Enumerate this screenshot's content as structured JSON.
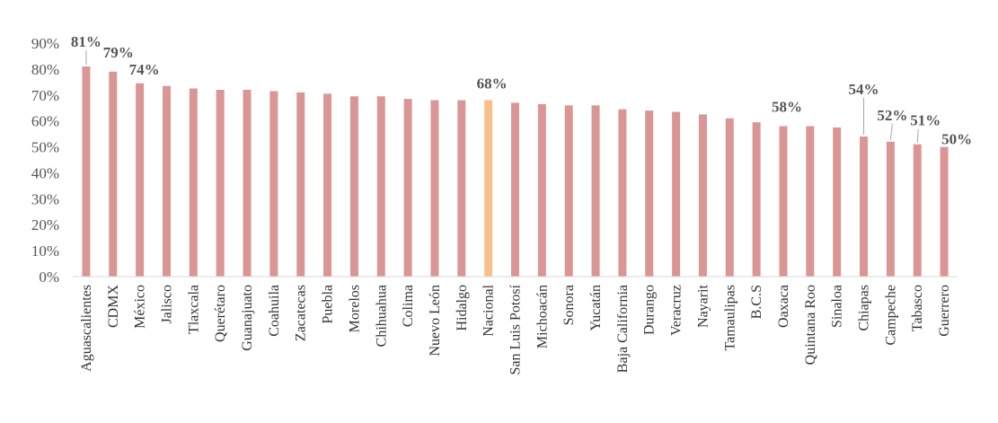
{
  "chart_data": {
    "type": "bar",
    "categories": [
      "Aguascalientes",
      "CDMX",
      "México",
      "Jalisco",
      "Tlaxcala",
      "Querétaro",
      "Guanajuato",
      "Coahuila",
      "Zacatecas",
      "Puebla",
      "Morelos",
      "Chihuahua",
      "Colima",
      "Nuevo León",
      "Hidalgo",
      "Nacional",
      "San Luis Potosí",
      "Michoacán",
      "Sonora",
      "Yucatán",
      "Baja California",
      "Durango",
      "Veracruz",
      "Nayarit",
      "Tamaulipas",
      "B.C.S",
      "Oaxaca",
      "Quintana Roo",
      "Sinaloa",
      "Chiapas",
      "Campeche",
      "Tabasco",
      "Guerrero"
    ],
    "values": [
      81,
      79,
      74.5,
      73.5,
      72.5,
      72,
      72,
      71.5,
      71,
      70.5,
      69.5,
      69.5,
      68.5,
      68,
      68,
      68,
      67,
      66.5,
      66,
      66,
      64.5,
      64,
      63.5,
      62.5,
      61,
      59.5,
      58,
      58,
      57.5,
      54,
      52,
      51,
      50
    ],
    "y_ticks": [
      "0%",
      "10%",
      "20%",
      "30%",
      "40%",
      "50%",
      "60%",
      "70%",
      "80%",
      "90%"
    ],
    "ylim": [
      0,
      90
    ],
    "grid": false,
    "bar_color": "#d99694",
    "highlight_color": "#f7c08a",
    "highlight_category": "Nacional",
    "data_labels": [
      {
        "index": 0,
        "text": "81%"
      },
      {
        "index": 1,
        "text": "79%"
      },
      {
        "index": 2,
        "text": "74%"
      },
      {
        "index": 15,
        "text": "68%"
      },
      {
        "index": 26,
        "text": "58%"
      },
      {
        "index": 29,
        "text": "54%"
      },
      {
        "index": 30,
        "text": "52%"
      },
      {
        "index": 31,
        "text": "51%"
      },
      {
        "index": 32,
        "text": "50%"
      }
    ]
  }
}
